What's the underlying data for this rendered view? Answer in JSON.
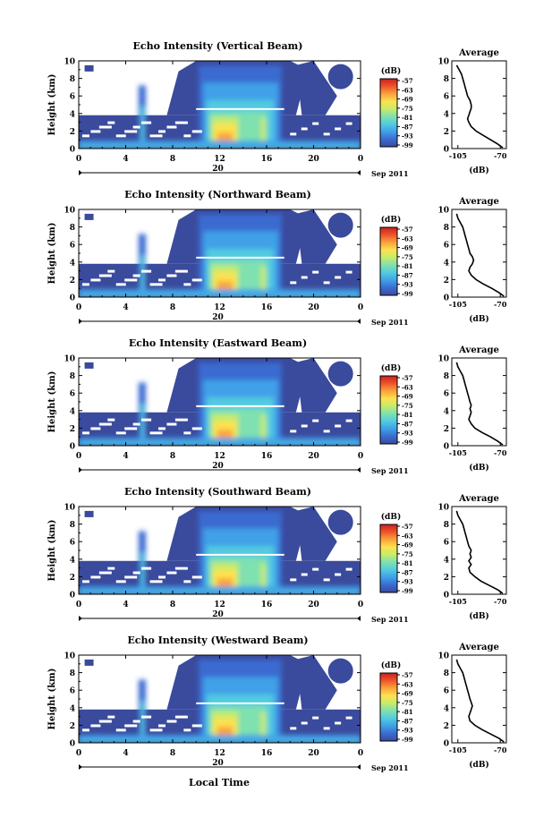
{
  "figure": {
    "day_label": "20",
    "month_year_label": "Sep 2011",
    "xlabel": "Local Time",
    "avg_title": "Average",
    "avg_xlabel": "(dB)",
    "cbar_unit": "(dB)",
    "ylabel": "Height (km)"
  },
  "chart_data": [
    {
      "type": "heatmap",
      "title": "Echo Intensity (Vertical Beam)",
      "ylabel": "Height (km)",
      "x_ticks": [
        "0",
        "4",
        "8",
        "12",
        "16",
        "20",
        "0"
      ],
      "y_ticks": [
        "0",
        "2",
        "4",
        "6",
        "8",
        "10"
      ],
      "xlim": [
        0,
        24
      ],
      "ylim": [
        0,
        10
      ],
      "colorbar": {
        "label": "(dB)",
        "ticks": [
          "-57",
          "-63",
          "-69",
          "-75",
          "-81",
          "-87",
          "-93",
          "-99"
        ]
      },
      "average_profile": {
        "title": "Average",
        "xlabel": "(dB)",
        "x_ticks": [
          "-105",
          "-70"
        ],
        "y_ticks": [
          "0",
          "2",
          "4",
          "6",
          "8",
          "10"
        ],
        "xlim": [
          -110,
          -65
        ],
        "ylim": [
          0,
          10
        ],
        "x": [
          -68,
          -72,
          -78,
          -84,
          -90,
          -94,
          -96,
          -97,
          -96,
          -95,
          -94,
          -94,
          -95,
          -97,
          -98,
          -99,
          -100,
          -101,
          -102,
          -104,
          -106
        ],
        "y": [
          0.1,
          0.5,
          1.0,
          1.5,
          2.0,
          2.5,
          3.0,
          3.4,
          3.8,
          4.2,
          4.6,
          5.0,
          5.5,
          6.0,
          6.5,
          7.0,
          7.5,
          8.0,
          8.5,
          9.0,
          9.5
        ]
      }
    },
    {
      "type": "heatmap",
      "title": "Echo Intensity (Northward Beam)",
      "ylabel": "Height (km)",
      "x_ticks": [
        "0",
        "4",
        "8",
        "12",
        "16",
        "20",
        "0"
      ],
      "y_ticks": [
        "0",
        "2",
        "4",
        "6",
        "8",
        "10"
      ],
      "xlim": [
        0,
        24
      ],
      "ylim": [
        0,
        10
      ],
      "colorbar": {
        "label": "(dB)",
        "ticks": [
          "-57",
          "-63",
          "-69",
          "-75",
          "-81",
          "-87",
          "-93",
          "-99"
        ]
      },
      "average_profile": {
        "title": "Average",
        "xlabel": "(dB)",
        "x_ticks": [
          "-105",
          "-70"
        ],
        "y_ticks": [
          "0",
          "2",
          "4",
          "6",
          "8",
          "10"
        ],
        "xlim": [
          -110,
          -65
        ],
        "ylim": [
          0,
          10
        ],
        "x": [
          -67,
          -71,
          -77,
          -84,
          -90,
          -94,
          -96,
          -95,
          -93,
          -92,
          -93,
          -95,
          -96,
          -97,
          -98,
          -99,
          -100,
          -101,
          -103,
          -105,
          -106
        ],
        "y": [
          0.1,
          0.5,
          1.0,
          1.5,
          2.0,
          2.5,
          3.0,
          3.4,
          3.8,
          4.2,
          4.6,
          5.0,
          5.5,
          6.0,
          6.5,
          7.0,
          7.5,
          8.0,
          8.5,
          9.0,
          9.5
        ]
      }
    },
    {
      "type": "heatmap",
      "title": "Echo Intensity (Eastward Beam)",
      "ylabel": "Height (km)",
      "x_ticks": [
        "0",
        "4",
        "8",
        "12",
        "16",
        "20",
        "0"
      ],
      "y_ticks": [
        "0",
        "2",
        "4",
        "6",
        "8",
        "10"
      ],
      "xlim": [
        0,
        24
      ],
      "ylim": [
        0,
        10
      ],
      "colorbar": {
        "label": "(dB)",
        "ticks": [
          "-57",
          "-63",
          "-69",
          "-75",
          "-81",
          "-87",
          "-93",
          "-99"
        ]
      },
      "average_profile": {
        "title": "Average",
        "xlabel": "(dB)",
        "x_ticks": [
          "-105",
          "-70"
        ],
        "y_ticks": [
          "0",
          "2",
          "4",
          "6",
          "8",
          "10"
        ],
        "xlim": [
          -110,
          -65
        ],
        "ylim": [
          0,
          10
        ],
        "x": [
          -68,
          -72,
          -78,
          -85,
          -91,
          -94,
          -96,
          -95,
          -94,
          -95,
          -94,
          -95,
          -96,
          -97,
          -98,
          -99,
          -100,
          -101,
          -103,
          -105,
          -106
        ],
        "y": [
          0.1,
          0.5,
          1.0,
          1.5,
          2.0,
          2.5,
          3.0,
          3.4,
          3.8,
          4.2,
          4.6,
          5.0,
          5.5,
          6.0,
          6.5,
          7.0,
          7.5,
          8.0,
          8.5,
          9.0,
          9.5
        ]
      }
    },
    {
      "type": "heatmap",
      "title": "Echo Intensity (Southward Beam)",
      "ylabel": "Height (km)",
      "x_ticks": [
        "0",
        "4",
        "8",
        "12",
        "16",
        "20",
        "0"
      ],
      "y_ticks": [
        "0",
        "2",
        "4",
        "6",
        "8",
        "10"
      ],
      "xlim": [
        0,
        24
      ],
      "ylim": [
        0,
        10
      ],
      "colorbar": {
        "label": "(dB)",
        "ticks": [
          "-57",
          "-63",
          "-69",
          "-75",
          "-81",
          "-87",
          "-93",
          "-99"
        ]
      },
      "average_profile": {
        "title": "Average",
        "xlabel": "(dB)",
        "x_ticks": [
          "-105",
          "-70"
        ],
        "y_ticks": [
          "0",
          "2",
          "4",
          "6",
          "8",
          "10"
        ],
        "xlim": [
          -110,
          -65
        ],
        "ylim": [
          0,
          10
        ],
        "x": [
          -68,
          -72,
          -79,
          -86,
          -91,
          -95,
          -96,
          -94,
          -96,
          -94,
          -95,
          -94,
          -96,
          -97,
          -98,
          -99,
          -100,
          -101,
          -103,
          -105,
          -106
        ],
        "y": [
          0.1,
          0.5,
          1.0,
          1.5,
          2.0,
          2.5,
          3.0,
          3.4,
          3.8,
          4.2,
          4.6,
          5.0,
          5.5,
          6.0,
          6.5,
          7.0,
          7.5,
          8.0,
          8.5,
          9.0,
          9.5
        ]
      }
    },
    {
      "type": "heatmap",
      "title": "Echo Intensity (Westward Beam)",
      "ylabel": "Height (km)",
      "x_ticks": [
        "0",
        "4",
        "8",
        "12",
        "16",
        "20",
        "0"
      ],
      "y_ticks": [
        "0",
        "2",
        "4",
        "6",
        "8",
        "10"
      ],
      "xlim": [
        0,
        24
      ],
      "ylim": [
        0,
        10
      ],
      "colorbar": {
        "label": "(dB)",
        "ticks": [
          "-57",
          "-63",
          "-69",
          "-75",
          "-81",
          "-87",
          "-93",
          "-99"
        ]
      },
      "average_profile": {
        "title": "Average",
        "xlabel": "(dB)",
        "x_ticks": [
          "-105",
          "-70"
        ],
        "y_ticks": [
          "0",
          "2",
          "4",
          "6",
          "8",
          "10"
        ],
        "xlim": [
          -110,
          -65
        ],
        "ylim": [
          0,
          10
        ],
        "x": [
          -67,
          -71,
          -78,
          -85,
          -91,
          -95,
          -96,
          -95,
          -94,
          -93,
          -94,
          -95,
          -96,
          -97,
          -98,
          -99,
          -100,
          -101,
          -103,
          -105,
          -106
        ],
        "y": [
          0.1,
          0.5,
          1.0,
          1.5,
          2.0,
          2.5,
          3.0,
          3.4,
          3.8,
          4.2,
          4.6,
          5.0,
          5.5,
          6.0,
          6.5,
          7.0,
          7.5,
          8.0,
          8.5,
          9.0,
          9.5
        ]
      }
    }
  ],
  "colors": {
    "colormap": [
      "#3a4a9c",
      "#3b6bd0",
      "#3fa0e8",
      "#52cbe0",
      "#7fe0b0",
      "#c6ec6a",
      "#fde150",
      "#fba23a",
      "#f0542a",
      "#c8201e"
    ],
    "axis": "#000000",
    "background": "#ffffff"
  }
}
